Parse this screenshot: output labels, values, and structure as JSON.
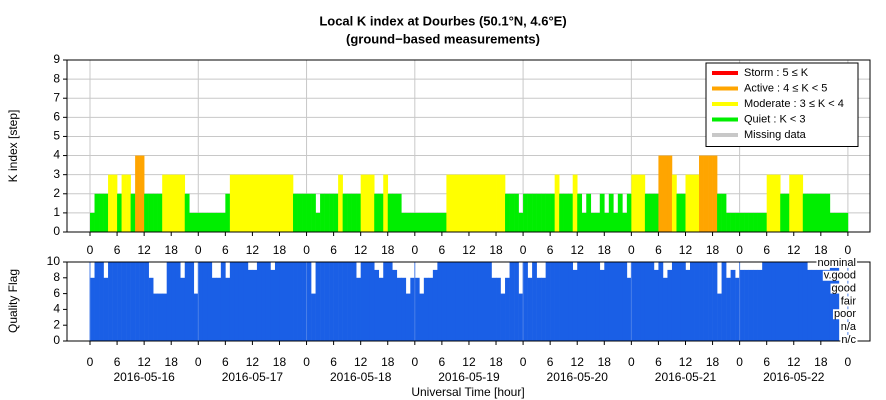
{
  "chart_data": [
    {
      "type": "bar",
      "title": "Local K index at Dourbes (50.1°N, 4.6°E)",
      "subtitle": "(ground−based measurements)",
      "ylabel": "K index [step]",
      "xlim": [
        -5.1,
        172.9
      ],
      "ylim": [
        0,
        9
      ],
      "yticks": [
        0,
        1,
        2,
        3,
        4,
        5,
        6,
        7,
        8,
        9
      ],
      "xticks": [
        0,
        6,
        12,
        18,
        {
          "value": 24,
          "label": "0"
        },
        {
          "value": 30,
          "label": "6"
        },
        {
          "value": 36,
          "label": "12"
        },
        {
          "value": 42,
          "label": "18"
        },
        {
          "value": 48,
          "label": "0"
        },
        {
          "value": 54,
          "label": "6"
        },
        {
          "value": 60,
          "label": "12"
        },
        {
          "value": 66,
          "label": "18"
        },
        {
          "value": 72,
          "label": "0"
        },
        {
          "value": 78,
          "label": "6"
        },
        {
          "value": 84,
          "label": "12"
        },
        {
          "value": 90,
          "label": "18"
        },
        {
          "value": 96,
          "label": "0"
        },
        {
          "value": 102,
          "label": "6"
        },
        {
          "value": 108,
          "label": "12"
        },
        {
          "value": 114,
          "label": "18"
        },
        {
          "value": 120,
          "label": "0"
        },
        {
          "value": 126,
          "label": "6"
        },
        {
          "value": 132,
          "label": "12"
        },
        {
          "value": 138,
          "label": "18"
        },
        {
          "value": 144,
          "label": "0"
        },
        {
          "value": 150,
          "label": "6"
        },
        {
          "value": 156,
          "label": "12"
        },
        {
          "value": 162,
          "label": "18"
        },
        {
          "value": 168,
          "label": "0"
        }
      ],
      "grid": true,
      "legend_position": "upper right",
      "levels": [
        {
          "label": "Storm : 5 ≤ K",
          "color": "#ff0000",
          "min": 5
        },
        {
          "label": "Active : 4 ≤ K < 5",
          "color": "#ffa500",
          "min": 4
        },
        {
          "label": "Moderate : 3 ≤ K < 4",
          "color": "#ffff00",
          "min": 3
        },
        {
          "label": "Quiet : K < 3",
          "color": "#00ee00",
          "min": 0
        },
        {
          "label": "Missing data",
          "color": "#c8c8c8"
        }
      ],
      "x": [
        0,
        1,
        2,
        3,
        4,
        5,
        6,
        7,
        8,
        9,
        10,
        11,
        12,
        13,
        14,
        15,
        16,
        17,
        18,
        19,
        20,
        21,
        22,
        23,
        24,
        25,
        26,
        27,
        28,
        29,
        30,
        31,
        32,
        33,
        34,
        35,
        36,
        37,
        38,
        39,
        40,
        41,
        42,
        43,
        44,
        45,
        46,
        47,
        48,
        49,
        50,
        51,
        52,
        53,
        54,
        55,
        56,
        57,
        58,
        59,
        60,
        61,
        62,
        63,
        64,
        65,
        66,
        67,
        68,
        69,
        70,
        71,
        72,
        73,
        74,
        75,
        76,
        77,
        78,
        79,
        80,
        81,
        82,
        83,
        84,
        85,
        86,
        87,
        88,
        89,
        90,
        91,
        92,
        93,
        94,
        95,
        96,
        97,
        98,
        99,
        100,
        101,
        102,
        103,
        104,
        105,
        106,
        107,
        108,
        109,
        110,
        111,
        112,
        113,
        114,
        115,
        116,
        117,
        118,
        119,
        120,
        121,
        122,
        123,
        124,
        125,
        126,
        127,
        128,
        129,
        130,
        131,
        132,
        133,
        134,
        135,
        136,
        137,
        138,
        139,
        140,
        141,
        142,
        143,
        144,
        145,
        146,
        147,
        148,
        149,
        150,
        151,
        152,
        153,
        154,
        155,
        156,
        157,
        158,
        159,
        160,
        161,
        162,
        163,
        164,
        165,
        166,
        167
      ],
      "values": [
        1,
        2,
        2,
        2,
        3,
        3,
        2,
        3,
        3,
        2,
        4,
        4,
        2,
        2,
        2,
        2,
        3,
        3,
        3,
        3,
        3,
        2,
        1,
        1,
        1,
        1,
        1,
        1,
        1,
        1,
        2,
        3,
        3,
        3,
        3,
        3,
        3,
        3,
        3,
        3,
        3,
        3,
        3,
        3,
        3,
        2,
        2,
        2,
        2,
        2,
        1,
        2,
        2,
        2,
        2,
        3,
        2,
        2,
        2,
        2,
        3,
        3,
        3,
        2,
        2,
        3,
        2,
        2,
        2,
        1,
        1,
        1,
        1,
        1,
        1,
        1,
        1,
        1,
        1,
        3,
        3,
        3,
        3,
        3,
        3,
        3,
        3,
        3,
        3,
        3,
        3,
        3,
        2,
        2,
        2,
        1,
        2,
        2,
        2,
        2,
        2,
        2,
        2,
        3,
        2,
        2,
        2,
        3,
        2,
        1,
        2,
        1,
        1,
        2,
        1,
        2,
        1,
        2,
        1,
        2,
        3,
        3,
        3,
        2,
        2,
        2,
        4,
        4,
        4,
        3,
        2,
        2,
        3,
        3,
        3,
        4,
        4,
        4,
        4,
        2,
        2,
        1,
        1,
        1,
        1,
        1,
        1,
        1,
        1,
        1,
        3,
        3,
        3,
        2,
        2,
        3,
        3,
        3,
        2,
        2,
        2,
        2,
        2,
        2,
        1,
        1,
        1,
        1
      ]
    },
    {
      "type": "bar",
      "ylabel": "Quality Flag",
      "xlabel": "Universal Time [hour]",
      "color": "#1a5fe6",
      "xlim": [
        -5.1,
        172.9
      ],
      "ylim": [
        0,
        10
      ],
      "yticks": [
        0,
        2,
        4,
        6,
        8,
        10
      ],
      "xticks": [
        0,
        6,
        12,
        18,
        {
          "value": 24,
          "label": "0"
        },
        {
          "value": 30,
          "label": "6"
        },
        {
          "value": 36,
          "label": "12"
        },
        {
          "value": 42,
          "label": "18"
        },
        {
          "value": 48,
          "label": "0"
        },
        {
          "value": 54,
          "label": "6"
        },
        {
          "value": 60,
          "label": "12"
        },
        {
          "value": 66,
          "label": "18"
        },
        {
          "value": 72,
          "label": "0"
        },
        {
          "value": 78,
          "label": "6"
        },
        {
          "value": 84,
          "label": "12"
        },
        {
          "value": 90,
          "label": "18"
        },
        {
          "value": 96,
          "label": "0"
        },
        {
          "value": 102,
          "label": "6"
        },
        {
          "value": 108,
          "label": "12"
        },
        {
          "value": 114,
          "label": "18"
        },
        {
          "value": 120,
          "label": "0"
        },
        {
          "value": 126,
          "label": "6"
        },
        {
          "value": 132,
          "label": "12"
        },
        {
          "value": 138,
          "label": "18"
        },
        {
          "value": 144,
          "label": "0"
        },
        {
          "value": 150,
          "label": "6"
        },
        {
          "value": 156,
          "label": "12"
        },
        {
          "value": 162,
          "label": "18"
        },
        {
          "value": 168,
          "label": "0"
        }
      ],
      "date_ticks": [
        {
          "value": 12,
          "label": "2016-05-16"
        },
        {
          "value": 36,
          "label": "2016-05-17"
        },
        {
          "value": 60,
          "label": "2016-05-18"
        },
        {
          "value": 84,
          "label": "2016-05-19"
        },
        {
          "value": 108,
          "label": "2016-05-20"
        },
        {
          "value": 132,
          "label": "2016-05-21"
        },
        {
          "value": 156,
          "label": "2016-05-22"
        }
      ],
      "flag_labels": [
        "nominal",
        "v.good",
        "good",
        "fair",
        "poor",
        "n/a",
        "n/c"
      ],
      "x": [
        0,
        1,
        2,
        3,
        4,
        5,
        6,
        7,
        8,
        9,
        10,
        11,
        12,
        13,
        14,
        15,
        16,
        17,
        18,
        19,
        20,
        21,
        22,
        23,
        24,
        25,
        26,
        27,
        28,
        29,
        30,
        31,
        32,
        33,
        34,
        35,
        36,
        37,
        38,
        39,
        40,
        41,
        42,
        43,
        44,
        45,
        46,
        47,
        48,
        49,
        50,
        51,
        52,
        53,
        54,
        55,
        56,
        57,
        58,
        59,
        60,
        61,
        62,
        63,
        64,
        65,
        66,
        67,
        68,
        69,
        70,
        71,
        72,
        73,
        74,
        75,
        76,
        77,
        78,
        79,
        80,
        81,
        82,
        83,
        84,
        85,
        86,
        87,
        88,
        89,
        90,
        91,
        92,
        93,
        94,
        95,
        96,
        97,
        98,
        99,
        100,
        101,
        102,
        103,
        104,
        105,
        106,
        107,
        108,
        109,
        110,
        111,
        112,
        113,
        114,
        115,
        116,
        117,
        118,
        119,
        120,
        121,
        122,
        123,
        124,
        125,
        126,
        127,
        128,
        129,
        130,
        131,
        132,
        133,
        134,
        135,
        136,
        137,
        138,
        139,
        140,
        141,
        142,
        143,
        144,
        145,
        146,
        147,
        148,
        149,
        150,
        151,
        152,
        153,
        154,
        155,
        156,
        157,
        158,
        159,
        160,
        161,
        162,
        163,
        164,
        165,
        166,
        167
      ],
      "values": [
        8,
        10,
        10,
        8,
        10,
        10,
        10,
        10,
        10,
        10,
        10,
        10,
        10,
        8,
        6,
        6,
        6,
        10,
        10,
        10,
        8,
        10,
        10,
        6,
        10,
        10,
        10,
        8,
        8,
        10,
        8,
        10,
        10,
        10,
        10,
        9,
        9,
        10,
        10,
        10,
        9,
        10,
        10,
        10,
        10,
        10,
        10,
        10,
        10,
        6,
        10,
        10,
        10,
        10,
        10,
        10,
        10,
        10,
        10,
        8,
        10,
        10,
        10,
        9,
        8,
        10,
        10,
        9,
        8,
        8,
        6,
        8,
        8,
        6,
        8,
        8,
        9,
        10,
        10,
        10,
        10,
        10,
        10,
        10,
        10,
        10,
        10,
        10,
        10,
        8,
        8,
        6,
        8,
        10,
        10,
        6,
        10,
        8,
        10,
        8,
        8,
        10,
        10,
        10,
        10,
        10,
        10,
        9,
        10,
        10,
        10,
        10,
        10,
        9,
        10,
        10,
        10,
        10,
        10,
        8,
        10,
        10,
        10,
        10,
        10,
        9,
        10,
        8,
        9,
        10,
        10,
        10,
        9,
        10,
        10,
        10,
        10,
        10,
        10,
        6,
        10,
        8,
        9,
        8,
        9,
        9,
        9,
        9,
        9,
        10,
        10,
        10,
        10,
        10,
        10,
        10,
        10,
        10,
        10,
        9,
        9,
        9,
        9,
        9,
        10,
        10,
        null,
        null
      ]
    }
  ]
}
